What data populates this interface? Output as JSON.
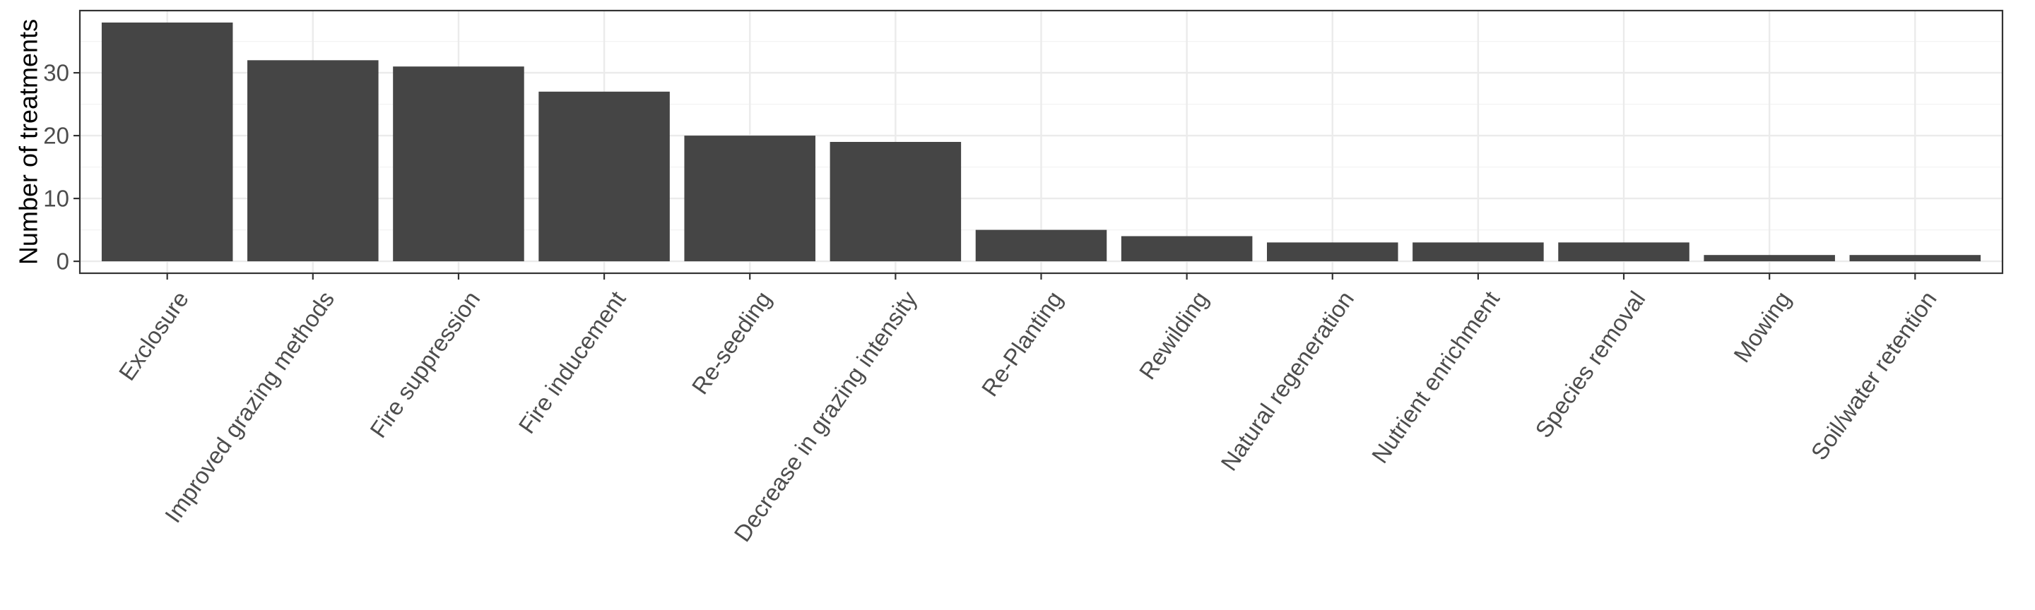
{
  "chart_data": {
    "type": "bar",
    "title": "",
    "xlabel": "",
    "ylabel": "Number of treatments",
    "categories": [
      "Exclosure",
      "Improved grazing methods",
      "Fire suppression",
      "Fire inducement",
      "Re-seeding",
      "Decrease in grazing intensity",
      "Re-Planting",
      "Rewilding",
      "Natural regeneration",
      "Nutrient enrichment",
      "Species removal",
      "Mowing",
      "Soil/water retention"
    ],
    "values": [
      38,
      32,
      31,
      27,
      20,
      19,
      5,
      4,
      3,
      3,
      3,
      1,
      1
    ],
    "ylim": [
      -1.9,
      39.9
    ],
    "yticks": [
      0,
      10,
      20,
      30
    ],
    "ytick_labels": [
      "0",
      "10",
      "20",
      "30"
    ],
    "grid": true,
    "legend": "none",
    "colors": {
      "bar": "#454545",
      "panel_border": "#333333",
      "grid_major": "#ebebeb",
      "grid_minor": "#f3f3f3",
      "tick_text": "#4d4d4d"
    }
  }
}
